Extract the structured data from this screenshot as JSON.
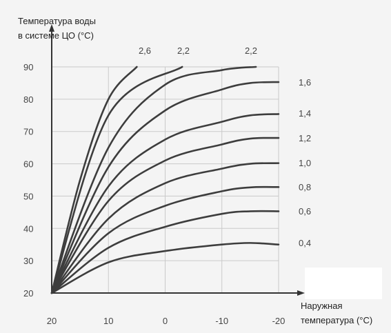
{
  "chart_data": {
    "type": "line",
    "title": "",
    "ylabel_lines": [
      "Температура воды",
      "в системе ЦО (°C)"
    ],
    "xlabel_lines": [
      "Наружная",
      "температура (°C)"
    ],
    "xlim": [
      20,
      -20
    ],
    "ylim": [
      20,
      90
    ],
    "x_ticks": [
      "20",
      "10",
      "0",
      "-10",
      "-20"
    ],
    "y_ticks": [
      "90",
      "80",
      "70",
      "60",
      "50",
      "40",
      "30",
      "20"
    ],
    "grid": true,
    "series": [
      {
        "name": "0,4",
        "points": [
          [
            20,
            20
          ],
          [
            10,
            29.5
          ],
          [
            0,
            33
          ],
          [
            -10,
            35
          ],
          [
            -15,
            35.5
          ],
          [
            -20,
            35
          ]
        ]
      },
      {
        "name": "0,6",
        "points": [
          [
            20,
            20
          ],
          [
            10,
            34
          ],
          [
            0,
            40.5
          ],
          [
            -10,
            44.5
          ],
          [
            -15,
            45.3
          ],
          [
            -20,
            45.3
          ]
        ]
      },
      {
        "name": "0,8",
        "points": [
          [
            20,
            20
          ],
          [
            10,
            38.5
          ],
          [
            0,
            47
          ],
          [
            -10,
            51.5
          ],
          [
            -15,
            52.7
          ],
          [
            -20,
            52.8
          ]
        ]
      },
      {
        "name": "1,0",
        "points": [
          [
            20,
            20
          ],
          [
            10,
            43
          ],
          [
            0,
            54
          ],
          [
            -10,
            58.5
          ],
          [
            -15,
            60
          ],
          [
            -20,
            60.2
          ]
        ]
      },
      {
        "name": "1,2",
        "points": [
          [
            20,
            20
          ],
          [
            10,
            48.5
          ],
          [
            0,
            61
          ],
          [
            -10,
            66
          ],
          [
            -15,
            67.8
          ],
          [
            -20,
            68
          ]
        ]
      },
      {
        "name": "1,4",
        "points": [
          [
            20,
            20
          ],
          [
            10,
            53
          ],
          [
            0,
            67.5
          ],
          [
            -10,
            73
          ],
          [
            -15,
            75
          ],
          [
            -20,
            75.4
          ]
        ]
      },
      {
        "name": "1,6",
        "points": [
          [
            20,
            20
          ],
          [
            10,
            59
          ],
          [
            0,
            76.5
          ],
          [
            -10,
            83
          ],
          [
            -15,
            85
          ],
          [
            -20,
            85.3
          ]
        ]
      },
      {
        "name": "2,2",
        "points": [
          [
            20,
            20
          ],
          [
            10,
            65
          ],
          [
            0,
            84.5
          ],
          [
            -10,
            89
          ],
          [
            -16,
            90
          ]
        ]
      },
      {
        "name": "2,2",
        "points": [
          [
            20,
            20
          ],
          [
            10,
            75
          ],
          [
            -3,
            90
          ]
        ]
      },
      {
        "name": "2,6",
        "points": [
          [
            20,
            20
          ],
          [
            15,
            55
          ],
          [
            10,
            80
          ],
          [
            5,
            90
          ]
        ]
      }
    ],
    "top_labels": [
      "2,6",
      "2,2",
      "2,2"
    ],
    "right_labels": [
      "1,6",
      "1,4",
      "1,2",
      "1,0",
      "0,8",
      "0,6",
      "0,4"
    ]
  }
}
